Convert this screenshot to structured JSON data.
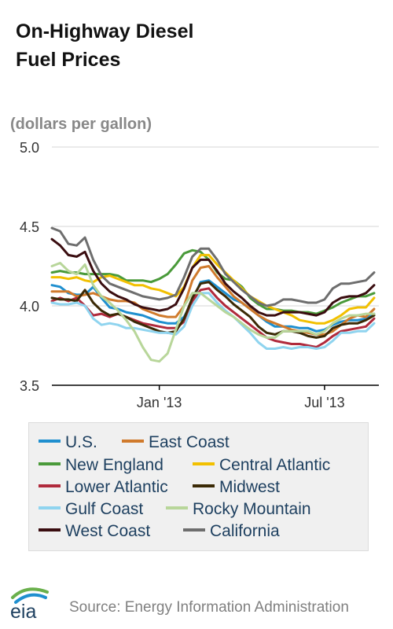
{
  "title_lines": [
    "On-Highway Diesel",
    "Fuel Prices"
  ],
  "logo_text": "eia",
  "source": "Source: Energy Information Administration",
  "chart_data": {
    "type": "line",
    "title": "On-Highway Diesel Fuel Prices",
    "ylabel": "(dollars per gallon)",
    "ylim": [
      3.5,
      5.0
    ],
    "yticks": [
      3.5,
      4.0,
      4.5,
      5.0
    ],
    "ytick_labels": [
      "3.5",
      "4.0",
      "4.5",
      "5.0"
    ],
    "xlim": [
      0,
      39
    ],
    "xtick_positions": [
      13,
      33
    ],
    "xtick_labels": [
      "Jan '13",
      "Jul '13"
    ],
    "grid": "horizontal",
    "legend_position": "bottom",
    "series": [
      {
        "name": "U.S.",
        "color": "#1f8fcf",
        "values": [
          4.13,
          4.12,
          4.08,
          4.07,
          4.07,
          4.12,
          4.05,
          3.99,
          3.98,
          3.96,
          3.95,
          3.94,
          3.92,
          3.9,
          3.89,
          3.89,
          3.93,
          4.03,
          4.15,
          4.16,
          4.12,
          4.08,
          4.04,
          4.02,
          3.98,
          3.94,
          3.9,
          3.87,
          3.87,
          3.87,
          3.86,
          3.86,
          3.84,
          3.85,
          3.88,
          3.9,
          3.91,
          3.91,
          3.92,
          3.95
        ]
      },
      {
        "name": "East Coast",
        "color": "#d07a2c",
        "values": [
          4.09,
          4.09,
          4.09,
          4.06,
          4.07,
          4.08,
          4.06,
          4.04,
          4.03,
          4.03,
          4.02,
          3.98,
          3.96,
          3.94,
          3.93,
          3.93,
          4.0,
          4.16,
          4.24,
          4.25,
          4.18,
          4.12,
          4.06,
          4.02,
          3.98,
          3.94,
          3.91,
          3.89,
          3.87,
          3.85,
          3.84,
          3.83,
          3.82,
          3.82,
          3.84,
          3.88,
          3.92,
          3.94,
          3.93,
          3.98
        ]
      },
      {
        "name": "New England",
        "color": "#4a9a3a",
        "values": [
          4.21,
          4.22,
          4.21,
          4.21,
          4.2,
          4.2,
          4.2,
          4.2,
          4.19,
          4.16,
          4.16,
          4.16,
          4.15,
          4.17,
          4.2,
          4.26,
          4.33,
          4.35,
          4.34,
          4.29,
          4.21,
          4.17,
          4.16,
          4.12,
          4.05,
          4.01,
          3.98,
          3.98,
          3.97,
          3.97,
          3.96,
          3.96,
          3.95,
          3.97,
          3.99,
          4.02,
          4.04,
          4.06,
          4.06,
          4.08
        ]
      },
      {
        "name": "Central Atlantic",
        "color": "#f2c000",
        "values": [
          4.18,
          4.18,
          4.17,
          4.18,
          4.16,
          4.15,
          4.18,
          4.19,
          4.17,
          4.15,
          4.13,
          4.13,
          4.11,
          4.1,
          4.08,
          4.06,
          4.12,
          4.24,
          4.32,
          4.32,
          4.26,
          4.21,
          4.16,
          4.11,
          4.06,
          4.03,
          4.0,
          3.98,
          3.96,
          3.94,
          3.91,
          3.9,
          3.89,
          3.89,
          3.91,
          3.94,
          3.98,
          3.99,
          3.99,
          4.05
        ]
      },
      {
        "name": "Lower Atlantic",
        "color": "#b02a3c",
        "values": [
          4.03,
          4.05,
          4.03,
          4.05,
          4.0,
          3.94,
          3.95,
          3.93,
          3.95,
          3.93,
          3.91,
          3.89,
          3.88,
          3.87,
          3.86,
          3.86,
          3.9,
          4.03,
          4.1,
          4.11,
          4.05,
          4.0,
          3.96,
          3.92,
          3.88,
          3.84,
          3.8,
          3.78,
          3.77,
          3.76,
          3.76,
          3.75,
          3.74,
          3.77,
          3.81,
          3.84,
          3.85,
          3.86,
          3.87,
          3.92
        ]
      },
      {
        "name": "Midwest",
        "color": "#3b2a06",
        "values": [
          4.05,
          4.04,
          4.04,
          4.03,
          4.1,
          4.02,
          3.97,
          3.94,
          3.95,
          3.93,
          3.9,
          3.88,
          3.86,
          3.84,
          3.83,
          3.84,
          3.92,
          4.05,
          4.14,
          4.15,
          4.1,
          4.06,
          4.01,
          3.97,
          3.93,
          3.87,
          3.83,
          3.82,
          3.84,
          3.84,
          3.83,
          3.81,
          3.8,
          3.81,
          3.86,
          3.88,
          3.89,
          3.89,
          3.91,
          3.94
        ]
      },
      {
        "name": "Gulf Coast",
        "color": "#8fd4ef",
        "values": [
          4.02,
          4.01,
          4.01,
          4.02,
          4.0,
          3.92,
          3.88,
          3.89,
          3.88,
          3.86,
          3.86,
          3.85,
          3.84,
          3.83,
          3.83,
          3.82,
          3.87,
          4.0,
          4.08,
          4.08,
          4.02,
          3.97,
          3.93,
          3.88,
          3.83,
          3.77,
          3.73,
          3.73,
          3.74,
          3.73,
          3.74,
          3.74,
          3.73,
          3.74,
          3.78,
          3.83,
          3.83,
          3.84,
          3.84,
          3.89
        ]
      },
      {
        "name": "Rocky Mountain",
        "color": "#b8d69a",
        "values": [
          4.25,
          4.27,
          4.22,
          4.2,
          4.26,
          4.13,
          4.06,
          4.02,
          3.97,
          3.91,
          3.84,
          3.74,
          3.66,
          3.65,
          3.7,
          3.85,
          4.0,
          4.08,
          4.08,
          4.04,
          4.0,
          3.96,
          3.93,
          3.89,
          3.85,
          3.82,
          3.8,
          3.8,
          3.84,
          3.84,
          3.84,
          3.84,
          3.82,
          3.84,
          3.89,
          3.92,
          3.94,
          3.94,
          3.95,
          3.95
        ]
      },
      {
        "name": "West Coast",
        "color": "#3a0d10",
        "values": [
          4.42,
          4.38,
          4.32,
          4.31,
          4.34,
          4.22,
          4.14,
          4.09,
          4.06,
          4.04,
          4.01,
          3.99,
          3.98,
          3.97,
          3.98,
          4.01,
          4.11,
          4.24,
          4.29,
          4.29,
          4.22,
          4.14,
          4.09,
          4.05,
          4.0,
          3.96,
          3.94,
          3.94,
          3.96,
          3.96,
          3.96,
          3.95,
          3.94,
          3.96,
          4.02,
          4.05,
          4.06,
          4.06,
          4.08,
          4.13
        ]
      },
      {
        "name": "California",
        "color": "#6e6e6e",
        "values": [
          4.49,
          4.47,
          4.39,
          4.38,
          4.43,
          4.29,
          4.19,
          4.14,
          4.12,
          4.1,
          4.08,
          4.06,
          4.05,
          4.04,
          4.05,
          4.07,
          4.18,
          4.31,
          4.36,
          4.36,
          4.29,
          4.2,
          4.15,
          4.1,
          4.06,
          4.02,
          4.0,
          4.01,
          4.04,
          4.04,
          4.03,
          4.02,
          4.02,
          4.04,
          4.11,
          4.14,
          4.14,
          4.15,
          4.16,
          4.21
        ]
      }
    ]
  },
  "legend": [
    {
      "label": "U.S.",
      "color": "#1f8fcf"
    },
    {
      "label": "East Coast",
      "color": "#d07a2c"
    },
    {
      "label": "New England",
      "color": "#4a9a3a"
    },
    {
      "label": "Central Atlantic",
      "color": "#f2c000"
    },
    {
      "label": "Lower Atlantic",
      "color": "#b02a3c"
    },
    {
      "label": "Midwest",
      "color": "#3b2a06"
    },
    {
      "label": "Gulf Coast",
      "color": "#8fd4ef"
    },
    {
      "label": "Rocky Mountain",
      "color": "#b8d69a"
    },
    {
      "label": "West Coast",
      "color": "#3a0d10"
    },
    {
      "label": "California",
      "color": "#6e6e6e"
    }
  ]
}
